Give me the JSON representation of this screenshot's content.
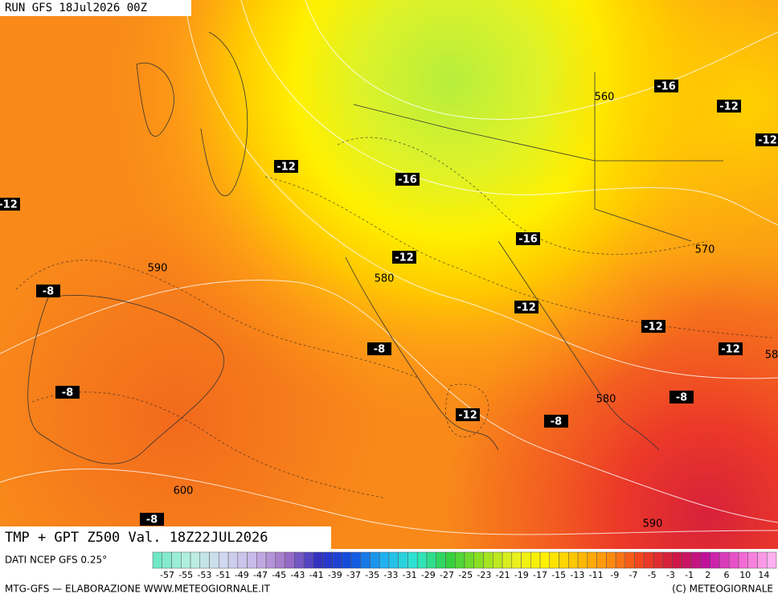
{
  "header": {
    "run": "RUN GFS 18Jul2026 00Z",
    "title": "TMP + GPT Z500 Val. 18Z22JUL2026"
  },
  "map_labels": {
    "temperature": [
      "-12",
      "-16",
      "-16",
      "-12",
      "-12",
      "-12",
      "-16",
      "-12",
      "-8",
      "-12",
      "-12",
      "-12",
      "-8",
      "-8",
      "-8",
      "-12",
      "-8",
      "-8"
    ],
    "geopotential": [
      "560",
      "570",
      "590",
      "580",
      "580",
      "600",
      "590",
      "58"
    ]
  },
  "legend": {
    "source": "DATI NCEP GFS 0.25°",
    "ticks": [
      -57,
      -55,
      -53,
      -51,
      -49,
      -47,
      -45,
      -43,
      -41,
      -39,
      -37,
      -35,
      -33,
      -31,
      -29,
      -27,
      -25,
      -23,
      -21,
      -19,
      -17,
      -15,
      -13,
      -11,
      -9,
      -7,
      -5,
      -3,
      -1,
      2,
      6,
      10,
      14
    ]
  },
  "footer": {
    "left": "MTG-GFS — ELABORAZIONE WWW.METEOGIORNALE.IT",
    "right": "(C) METEOGIORNALE"
  }
}
